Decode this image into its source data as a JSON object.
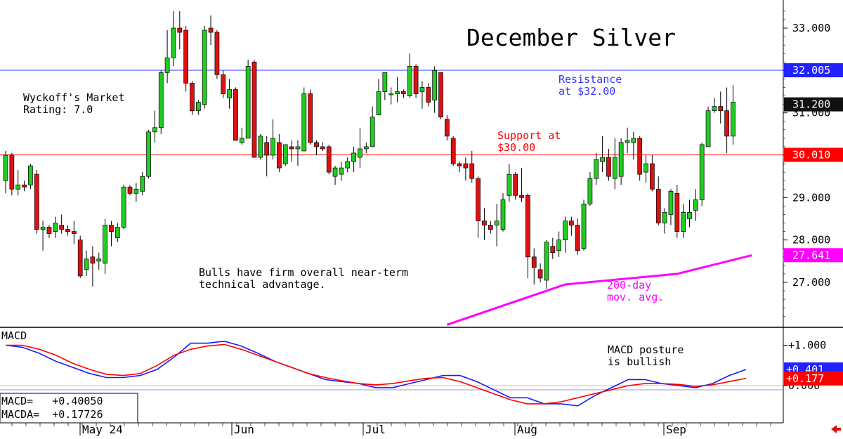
{
  "chart_data": [
    {
      "type": "candlestick",
      "title": "December Silver",
      "x_tick_labels": [
        "May 24",
        "Jun",
        "Jul",
        "Aug",
        "Sep"
      ],
      "y_tick_labels": [
        "33.000",
        "32.000",
        "31.000",
        "30.000",
        "29.000",
        "28.000",
        "27.000"
      ],
      "ylim": [
        26.0,
        33.45
      ],
      "grid": false,
      "candles": [
        {
          "o": 29.4,
          "h": 30.1,
          "l": 29.1,
          "c": 30.0
        },
        {
          "o": 30.0,
          "h": 30.05,
          "l": 29.05,
          "c": 29.2
        },
        {
          "o": 29.2,
          "h": 29.65,
          "l": 29.05,
          "c": 29.3
        },
        {
          "o": 29.3,
          "h": 29.4,
          "l": 29.15,
          "c": 29.25
        },
        {
          "o": 29.3,
          "h": 29.8,
          "l": 29.2,
          "c": 29.75
        },
        {
          "o": 29.55,
          "h": 29.65,
          "l": 28.15,
          "c": 28.25
        },
        {
          "o": 28.25,
          "h": 28.45,
          "l": 27.75,
          "c": 28.3
        },
        {
          "o": 28.3,
          "h": 28.35,
          "l": 28.05,
          "c": 28.15
        },
        {
          "o": 28.2,
          "h": 28.55,
          "l": 28.05,
          "c": 28.4
        },
        {
          "o": 28.35,
          "h": 28.6,
          "l": 28.15,
          "c": 28.25
        },
        {
          "o": 28.25,
          "h": 28.35,
          "l": 28.1,
          "c": 28.2
        },
        {
          "o": 28.2,
          "h": 28.45,
          "l": 27.9,
          "c": 28.15
        },
        {
          "o": 28.0,
          "h": 28.1,
          "l": 27.1,
          "c": 27.15
        },
        {
          "o": 27.3,
          "h": 27.75,
          "l": 27.15,
          "c": 27.55
        },
        {
          "o": 27.6,
          "h": 27.85,
          "l": 26.9,
          "c": 27.45
        },
        {
          "o": 27.5,
          "h": 27.7,
          "l": 27.3,
          "c": 27.55
        },
        {
          "o": 27.45,
          "h": 28.5,
          "l": 27.2,
          "c": 28.35
        },
        {
          "o": 28.35,
          "h": 28.45,
          "l": 27.85,
          "c": 28.2
        },
        {
          "o": 28.05,
          "h": 28.4,
          "l": 27.95,
          "c": 28.3
        },
        {
          "o": 28.3,
          "h": 29.3,
          "l": 28.25,
          "c": 29.25
        },
        {
          "o": 29.25,
          "h": 29.3,
          "l": 29.05,
          "c": 29.1
        },
        {
          "o": 29.1,
          "h": 29.35,
          "l": 28.9,
          "c": 29.2
        },
        {
          "o": 29.15,
          "h": 29.6,
          "l": 29.05,
          "c": 29.5
        },
        {
          "o": 29.5,
          "h": 30.6,
          "l": 29.45,
          "c": 30.55
        },
        {
          "o": 30.55,
          "h": 31.05,
          "l": 30.3,
          "c": 30.65
        },
        {
          "o": 30.65,
          "h": 32.0,
          "l": 30.5,
          "c": 31.95
        },
        {
          "o": 31.95,
          "h": 32.95,
          "l": 31.7,
          "c": 32.3
        },
        {
          "o": 32.3,
          "h": 33.4,
          "l": 32.1,
          "c": 33.0
        },
        {
          "o": 33.0,
          "h": 33.4,
          "l": 32.5,
          "c": 32.9
        },
        {
          "o": 32.95,
          "h": 33.05,
          "l": 31.5,
          "c": 31.7
        },
        {
          "o": 31.7,
          "h": 31.75,
          "l": 30.95,
          "c": 31.05
        },
        {
          "o": 31.05,
          "h": 31.3,
          "l": 30.95,
          "c": 31.25
        },
        {
          "o": 31.2,
          "h": 33.05,
          "l": 31.1,
          "c": 32.95
        },
        {
          "o": 33.0,
          "h": 33.3,
          "l": 32.6,
          "c": 32.9
        },
        {
          "o": 32.9,
          "h": 32.95,
          "l": 31.8,
          "c": 31.9
        },
        {
          "o": 31.9,
          "h": 32.0,
          "l": 31.35,
          "c": 31.45
        },
        {
          "o": 31.35,
          "h": 31.8,
          "l": 31.1,
          "c": 31.55
        },
        {
          "o": 31.55,
          "h": 31.6,
          "l": 30.35,
          "c": 30.35
        },
        {
          "o": 30.3,
          "h": 30.65,
          "l": 30.25,
          "c": 30.4
        },
        {
          "o": 30.4,
          "h": 32.25,
          "l": 30.4,
          "c": 32.1
        },
        {
          "o": 32.2,
          "h": 32.25,
          "l": 29.95,
          "c": 29.95
        },
        {
          "o": 29.95,
          "h": 30.5,
          "l": 29.9,
          "c": 30.45
        },
        {
          "o": 30.3,
          "h": 30.45,
          "l": 29.5,
          "c": 30.0
        },
        {
          "o": 30.0,
          "h": 30.85,
          "l": 29.9,
          "c": 30.4
        },
        {
          "o": 30.3,
          "h": 30.5,
          "l": 29.6,
          "c": 29.7
        },
        {
          "o": 29.8,
          "h": 30.25,
          "l": 29.75,
          "c": 30.25
        },
        {
          "o": 30.2,
          "h": 30.35,
          "l": 29.85,
          "c": 30.15
        },
        {
          "o": 30.15,
          "h": 30.35,
          "l": 29.75,
          "c": 30.2
        },
        {
          "o": 30.1,
          "h": 31.6,
          "l": 30.1,
          "c": 31.45
        },
        {
          "o": 31.45,
          "h": 31.55,
          "l": 30.25,
          "c": 30.3
        },
        {
          "o": 30.3,
          "h": 30.35,
          "l": 30.0,
          "c": 30.2
        },
        {
          "o": 30.2,
          "h": 30.3,
          "l": 30.1,
          "c": 30.15
        },
        {
          "o": 30.2,
          "h": 30.25,
          "l": 29.55,
          "c": 29.6
        },
        {
          "o": 29.5,
          "h": 29.75,
          "l": 29.3,
          "c": 29.7
        },
        {
          "o": 29.55,
          "h": 29.85,
          "l": 29.4,
          "c": 29.7
        },
        {
          "o": 29.7,
          "h": 29.95,
          "l": 29.6,
          "c": 29.85
        },
        {
          "o": 29.85,
          "h": 30.2,
          "l": 29.6,
          "c": 30.05
        },
        {
          "o": 29.95,
          "h": 30.65,
          "l": 29.7,
          "c": 30.15
        },
        {
          "o": 30.15,
          "h": 30.3,
          "l": 30.05,
          "c": 30.2
        },
        {
          "o": 30.2,
          "h": 31.15,
          "l": 30.2,
          "c": 30.9
        },
        {
          "o": 30.95,
          "h": 31.8,
          "l": 30.95,
          "c": 31.5
        },
        {
          "o": 31.5,
          "h": 31.9,
          "l": 31.3,
          "c": 31.95
        },
        {
          "o": 31.45,
          "h": 31.6,
          "l": 31.2,
          "c": 31.45
        },
        {
          "o": 31.45,
          "h": 31.85,
          "l": 31.25,
          "c": 31.5
        },
        {
          "o": 31.5,
          "h": 31.55,
          "l": 31.35,
          "c": 31.45
        },
        {
          "o": 31.4,
          "h": 32.4,
          "l": 31.35,
          "c": 32.1
        },
        {
          "o": 32.1,
          "h": 32.15,
          "l": 31.35,
          "c": 31.45
        },
        {
          "o": 31.5,
          "h": 31.75,
          "l": 31.1,
          "c": 31.6
        },
        {
          "o": 31.6,
          "h": 31.7,
          "l": 31.15,
          "c": 31.25
        },
        {
          "o": 31.3,
          "h": 32.1,
          "l": 31.0,
          "c": 32.0
        },
        {
          "o": 31.95,
          "h": 31.95,
          "l": 30.85,
          "c": 30.9
        },
        {
          "o": 30.85,
          "h": 30.95,
          "l": 30.35,
          "c": 30.45
        },
        {
          "o": 30.4,
          "h": 30.45,
          "l": 29.75,
          "c": 29.8
        },
        {
          "o": 29.8,
          "h": 29.85,
          "l": 29.6,
          "c": 29.75
        },
        {
          "o": 29.8,
          "h": 29.95,
          "l": 29.4,
          "c": 29.7
        },
        {
          "o": 29.8,
          "h": 30.1,
          "l": 29.35,
          "c": 29.45
        },
        {
          "o": 29.45,
          "h": 29.5,
          "l": 28.05,
          "c": 28.45
        },
        {
          "o": 28.45,
          "h": 28.75,
          "l": 28.0,
          "c": 28.35
        },
        {
          "o": 28.35,
          "h": 28.45,
          "l": 28.15,
          "c": 28.25
        },
        {
          "o": 28.35,
          "h": 28.85,
          "l": 27.85,
          "c": 28.45
        },
        {
          "o": 28.25,
          "h": 29.1,
          "l": 28.2,
          "c": 28.95
        },
        {
          "o": 29.05,
          "h": 29.8,
          "l": 28.9,
          "c": 29.55
        },
        {
          "o": 29.55,
          "h": 29.6,
          "l": 28.95,
          "c": 29.05
        },
        {
          "o": 29.05,
          "h": 29.7,
          "l": 28.9,
          "c": 29.0
        },
        {
          "o": 29.05,
          "h": 29.1,
          "l": 27.1,
          "c": 27.6
        },
        {
          "o": 27.6,
          "h": 27.8,
          "l": 26.95,
          "c": 27.35
        },
        {
          "o": 27.3,
          "h": 27.45,
          "l": 27.0,
          "c": 27.1
        },
        {
          "o": 27.05,
          "h": 28.0,
          "l": 26.85,
          "c": 27.95
        },
        {
          "o": 27.85,
          "h": 28.05,
          "l": 27.55,
          "c": 27.7
        },
        {
          "o": 27.75,
          "h": 28.2,
          "l": 27.6,
          "c": 28.0
        },
        {
          "o": 28.0,
          "h": 28.55,
          "l": 27.7,
          "c": 28.45
        },
        {
          "o": 28.45,
          "h": 28.55,
          "l": 28.1,
          "c": 28.35
        },
        {
          "o": 28.35,
          "h": 28.5,
          "l": 27.65,
          "c": 27.75
        },
        {
          "o": 27.8,
          "h": 28.95,
          "l": 27.75,
          "c": 28.85
        },
        {
          "o": 28.85,
          "h": 29.6,
          "l": 28.8,
          "c": 29.45
        },
        {
          "o": 29.45,
          "h": 30.05,
          "l": 29.3,
          "c": 29.9
        },
        {
          "o": 29.85,
          "h": 30.45,
          "l": 29.6,
          "c": 29.95
        },
        {
          "o": 29.95,
          "h": 30.15,
          "l": 29.4,
          "c": 29.5
        },
        {
          "o": 29.45,
          "h": 30.4,
          "l": 29.2,
          "c": 29.95
        },
        {
          "o": 29.5,
          "h": 30.4,
          "l": 29.3,
          "c": 30.3
        },
        {
          "o": 30.3,
          "h": 30.65,
          "l": 30.05,
          "c": 30.35
        },
        {
          "o": 30.3,
          "h": 30.55,
          "l": 29.9,
          "c": 30.4
        },
        {
          "o": 30.4,
          "h": 30.45,
          "l": 29.4,
          "c": 29.55
        },
        {
          "o": 29.6,
          "h": 30.0,
          "l": 29.35,
          "c": 29.8
        },
        {
          "o": 29.8,
          "h": 30.0,
          "l": 29.15,
          "c": 29.2
        },
        {
          "o": 29.2,
          "h": 29.5,
          "l": 28.35,
          "c": 28.4
        },
        {
          "o": 28.4,
          "h": 28.75,
          "l": 28.15,
          "c": 28.65
        },
        {
          "o": 28.6,
          "h": 29.2,
          "l": 28.35,
          "c": 29.15
        },
        {
          "o": 29.1,
          "h": 29.3,
          "l": 28.05,
          "c": 28.2
        },
        {
          "o": 28.2,
          "h": 28.85,
          "l": 28.05,
          "c": 28.65
        },
        {
          "o": 28.5,
          "h": 28.95,
          "l": 28.3,
          "c": 28.65
        },
        {
          "o": 28.7,
          "h": 29.2,
          "l": 28.45,
          "c": 28.95
        },
        {
          "o": 28.95,
          "h": 30.3,
          "l": 28.8,
          "c": 30.25
        },
        {
          "o": 30.2,
          "h": 31.15,
          "l": 30.2,
          "c": 31.05
        },
        {
          "o": 31.05,
          "h": 31.35,
          "l": 31.0,
          "c": 31.15
        },
        {
          "o": 31.15,
          "h": 31.5,
          "l": 30.75,
          "c": 31.05
        },
        {
          "o": 31.05,
          "h": 31.6,
          "l": 30.05,
          "c": 30.45
        },
        {
          "o": 30.45,
          "h": 31.65,
          "l": 30.25,
          "c": 31.25
        }
      ],
      "moving_average_200": {
        "label": "200-day\nmov. avg.",
        "color": "#ff00ff",
        "x": [
          71,
          90,
          108,
          120
        ],
        "y": [
          26.0,
          26.95,
          27.2,
          27.64
        ]
      },
      "reference_lines": [
        {
          "name": "resistance",
          "value": 32.005,
          "color": "#3333ff",
          "label": "Resistance\nat $32.00"
        },
        {
          "name": "support",
          "value": 30.01,
          "color": "#ff0000",
          "label": "Support at\n$30.00"
        }
      ],
      "price_tags": [
        {
          "text": "32.005",
          "value": 32.005,
          "color": "#2222ff"
        },
        {
          "text": "31.200",
          "value": 31.2,
          "color": "#111111"
        },
        {
          "text": "30.010",
          "value": 30.01,
          "color": "#ff0000"
        },
        {
          "text": "27.641",
          "value": 27.641,
          "color": "#ff00ff"
        }
      ],
      "annotations": {
        "rating": "Wyckoff's Market\nRating: 7.0",
        "outlook": "Bulls have firm overall near-term\ntechnical advantage."
      },
      "colors": {
        "up": "#22cc22",
        "down": "#dd1111"
      }
    },
    {
      "type": "line",
      "title": "MACD",
      "y_tick_labels": [
        "+1.000",
        "0.000"
      ],
      "ylim": [
        -0.4,
        1.25
      ],
      "series": [
        {
          "name": "MACD",
          "color": "#1a1aff",
          "values": [
            1.0,
            0.95,
            0.8,
            0.6,
            0.45,
            0.3,
            0.2,
            0.2,
            0.25,
            0.4,
            0.7,
            1.05,
            1.05,
            1.1,
            0.98,
            0.8,
            0.6,
            0.45,
            0.3,
            0.15,
            0.1,
            0.05,
            -0.05,
            -0.05,
            0.05,
            0.15,
            0.25,
            0.25,
            0.1,
            -0.1,
            -0.3,
            -0.3,
            -0.45,
            -0.45,
            -0.5,
            -0.25,
            -0.05,
            0.15,
            0.15,
            0.05,
            0.0,
            -0.05,
            0.05,
            0.25,
            0.4
          ]
        },
        {
          "name": "MACDA",
          "color": "#ff0000",
          "values": [
            1.0,
            1.0,
            0.9,
            0.75,
            0.55,
            0.4,
            0.28,
            0.25,
            0.3,
            0.5,
            0.75,
            0.9,
            0.98,
            1.02,
            0.9,
            0.75,
            0.6,
            0.45,
            0.3,
            0.2,
            0.12,
            0.05,
            0.02,
            0.05,
            0.12,
            0.18,
            0.2,
            0.1,
            -0.05,
            -0.2,
            -0.35,
            -0.45,
            -0.45,
            -0.4,
            -0.3,
            -0.2,
            -0.1,
            0.0,
            0.05,
            0.05,
            0.03,
            -0.02,
            0.02,
            0.1,
            0.18
          ]
        }
      ],
      "readout": {
        "macd": "MACD=   +0.40050",
        "macda": "MACDA=  +0.17726"
      },
      "price_tags": [
        {
          "text": "+0.401",
          "value": 0.401,
          "color": "#2222ff"
        },
        {
          "text": "+0.177",
          "value": 0.177,
          "color": "#ff0000"
        }
      ],
      "zero_line_color": "#ffaaaa",
      "annotation": "MACD posture\nis bullish"
    }
  ]
}
